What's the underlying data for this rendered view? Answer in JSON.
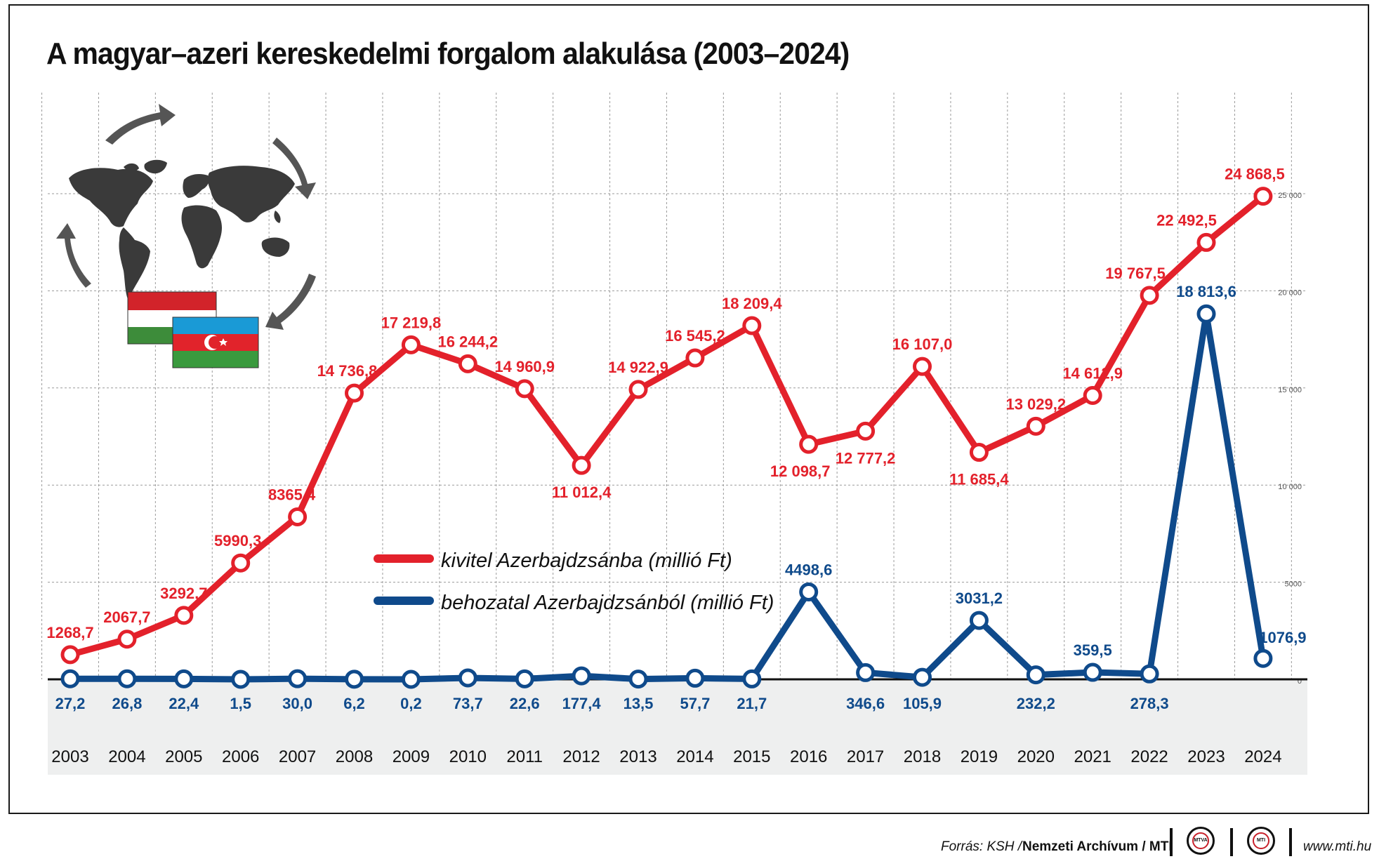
{
  "title": "A magyar–azeri kereskedelmi forgalom alakulása (2003–2024)",
  "colors": {
    "export": "#e3212b",
    "import": "#0f4a8b",
    "grid": "#9a9a9a",
    "band": "#eeefef"
  },
  "chart_data": {
    "type": "line",
    "title": "A magyar–azeri kereskedelmi forgalom alakulása (2003–2024)",
    "xlabel": "",
    "ylabel": "",
    "ylim": [
      0,
      25000
    ],
    "y_ticks": [
      0,
      5000,
      10000,
      15000,
      20000,
      25000
    ],
    "y_tick_labels": [
      "0",
      "5000",
      "10 000",
      "15 000",
      "20 000",
      "25 000"
    ],
    "grid": true,
    "legend_position": "center",
    "categories": [
      "2003",
      "2004",
      "2005",
      "2006",
      "2007",
      "2008",
      "2009",
      "2010",
      "2011",
      "2012",
      "2013",
      "2014",
      "2015",
      "2016",
      "2017",
      "2018",
      "2019",
      "2020",
      "2021",
      "2022",
      "2023",
      "2024"
    ],
    "series": [
      {
        "name": "kivitel Azerbajdzsánba (millió Ft)",
        "color": "#e3212b",
        "values": [
          1268.7,
          2067.7,
          3292.7,
          5990.3,
          8365.4,
          14736.8,
          17219.8,
          16244.2,
          14960.9,
          11012.4,
          14922.9,
          16545.2,
          18209.4,
          12098.7,
          12777.2,
          16107.0,
          11685.4,
          13029.2,
          14612.9,
          19767.5,
          22492.5,
          24868.5
        ],
        "labels": [
          "1268,7",
          "2067,7",
          "3292,7",
          "5990,3",
          "8365,4",
          "14 736,8",
          "17 219,8",
          "16 244,2",
          "14 960,9",
          "11 012,4",
          "14 922,9",
          "16 545,2",
          "18 209,4",
          "12 098,7",
          "12 777,2",
          "16 107,0",
          "11 685,4",
          "13 029,2",
          "14 612,9",
          "19 767,5",
          "22 492,5",
          "24 868,5"
        ]
      },
      {
        "name": "behozatal Azerbajdzsánból (millió Ft)",
        "color": "#0f4a8b",
        "values": [
          27.2,
          26.8,
          22.4,
          1.5,
          30.0,
          6.2,
          0.2,
          73.7,
          22.6,
          177.4,
          13.5,
          57.7,
          21.7,
          4498.6,
          346.6,
          105.9,
          3031.2,
          232.2,
          359.5,
          278.3,
          18813.6,
          1076.9
        ],
        "labels": [
          "27,2",
          "26,8",
          "22,4",
          "1,5",
          "30,0",
          "6,2",
          "0,2",
          "73,7",
          "22,6",
          "177,4",
          "13,5",
          "57,7",
          "21,7",
          "4498,6",
          "346,6",
          "105,9",
          "3031,2",
          "232,2",
          "359,5",
          "278,3",
          "18 813,6",
          "1076,9"
        ]
      }
    ]
  },
  "footer": {
    "source_prefix": "Forrás: KSH /",
    "source_bold": "Nemzeti Archívum / MTI",
    "logo1": "MTVA",
    "logo2": "MTI",
    "url": "www.mti.hu"
  },
  "illustration": {
    "icons": [
      "world-map-icon",
      "cycle-arrows-icon",
      "hungary-flag-icon",
      "azerbaijan-flag-icon"
    ]
  }
}
